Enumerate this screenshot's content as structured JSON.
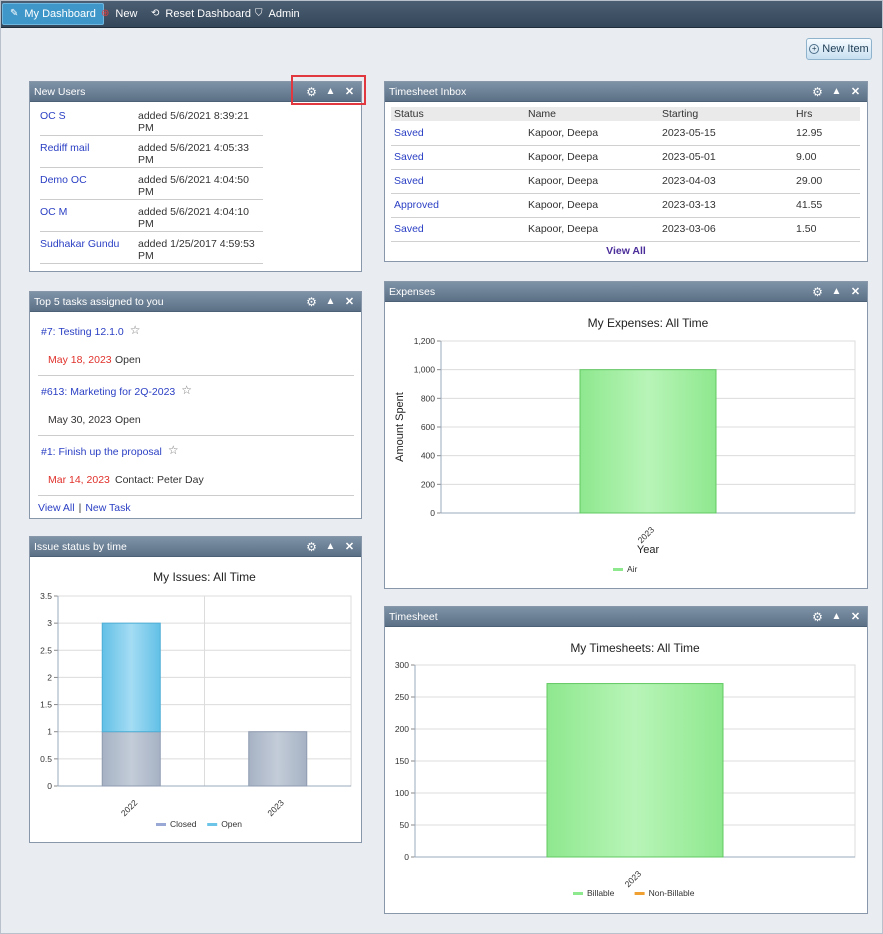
{
  "nav": {
    "items": [
      {
        "label": "My Dashboard",
        "icon": "pencil-icon"
      },
      {
        "label": "New",
        "icon": "plus-circle-icon"
      },
      {
        "label": "Reset Dashboard",
        "icon": "refresh-icon"
      },
      {
        "label": "Admin",
        "icon": "shield-icon"
      }
    ]
  },
  "new_item_label": "New Item",
  "new_users": {
    "title": "New Users",
    "users": [
      {
        "name": "OC S",
        "added": "added 5/6/2021 8:39:21 PM"
      },
      {
        "name": "Rediff mail",
        "added": "added 5/6/2021 4:05:33 PM"
      },
      {
        "name": "Demo OC",
        "added": "added 5/6/2021 4:04:50 PM"
      },
      {
        "name": "OC M",
        "added": "added 5/6/2021 4:04:10 PM"
      },
      {
        "name": "Sudhakar Gundu",
        "added": "added 1/25/2017 4:59:53 PM"
      }
    ]
  },
  "tasks": {
    "title": "Top 5 tasks assigned to you",
    "items": [
      {
        "title": "#7: Testing 12.1.0",
        "date": "May 18, 2023",
        "date_color": "#e0302a",
        "status": "Open"
      },
      {
        "title": "#613: Marketing for 2Q-2023",
        "date": "May 30, 2023",
        "date_color": "#333333",
        "status": "Open"
      },
      {
        "title": "#1: Finish up the proposal",
        "date": "Mar 14, 2023",
        "date_color": "#e0302a",
        "status": "Contact: Peter Day"
      }
    ],
    "view_all": "View All",
    "separator": "|",
    "new_task": "New Task"
  },
  "timesheet_inbox": {
    "title": "Timesheet Inbox",
    "columns": [
      "Status",
      "Name",
      "Starting",
      "Hrs"
    ],
    "rows": [
      [
        "Saved",
        "Kapoor, Deepa",
        "2023-05-15",
        "12.95"
      ],
      [
        "Saved",
        "Kapoor, Deepa",
        "2023-05-01",
        "9.00"
      ],
      [
        "Saved",
        "Kapoor, Deepa",
        "2023-04-03",
        "29.00"
      ],
      [
        "Approved",
        "Kapoor, Deepa",
        "2023-03-13",
        "41.55"
      ],
      [
        "Saved",
        "Kapoor, Deepa",
        "2023-03-06",
        "1.50"
      ]
    ],
    "view_all": "View All"
  },
  "panel_titles": {
    "issue": "Issue status by time",
    "expenses": "Expenses",
    "timesheet": "Timesheet"
  },
  "colors": {
    "closed": "#aab7c9",
    "open": "#6cc4e8",
    "green": "#8ee88e",
    "orange": "#f0a030",
    "link": "#2a3fc4"
  },
  "chart_data": [
    {
      "type": "bar",
      "title": "My Issues: All Time",
      "categories": [
        "2022",
        "2023"
      ],
      "series": [
        {
          "name": "Closed",
          "values": [
            1,
            1
          ]
        },
        {
          "name": "Open",
          "values": [
            2,
            0
          ]
        }
      ],
      "stacked": true,
      "ylim": [
        0,
        3.5
      ],
      "yticks": [
        "0",
        "0.5",
        "1",
        "1.5",
        "2",
        "2.5",
        "3",
        "3.5"
      ],
      "legend": "bottom",
      "grid": true
    },
    {
      "type": "bar",
      "title": "My Expenses: All Time",
      "categories": [
        "2023"
      ],
      "series": [
        {
          "name": "Air",
          "values": [
            1000
          ]
        }
      ],
      "xlabel": "Year",
      "ylabel": "Amount Spent",
      "ylim": [
        0,
        1200
      ],
      "yticks": [
        "0",
        "200",
        "400",
        "600",
        "800",
        "1,000",
        "1,200"
      ],
      "legend": "bottom",
      "grid": true
    },
    {
      "type": "bar",
      "title": "My Timesheets: All Time",
      "categories": [
        "2023"
      ],
      "series": [
        {
          "name": "Billable",
          "values": [
            271
          ]
        },
        {
          "name": "Non-Billable",
          "values": [
            0
          ]
        }
      ],
      "ylim": [
        0,
        300
      ],
      "yticks": [
        "0",
        "50",
        "100",
        "150",
        "200",
        "250",
        "300"
      ],
      "legend": "bottom",
      "grid": true
    }
  ]
}
